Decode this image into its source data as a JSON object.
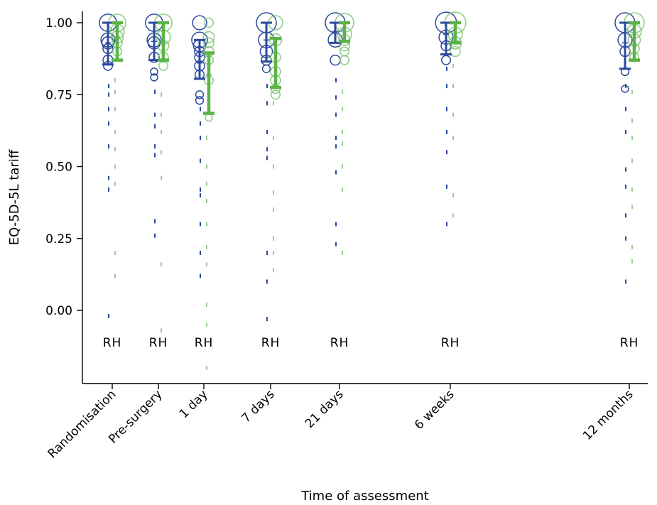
{
  "chart_data": {
    "type": "scatter",
    "xlabel": "Time of assessment",
    "ylabel": "EQ-5D-5L tariff",
    "ylim": [
      -0.25,
      1.05
    ],
    "yticks": [
      "0.00",
      "0.25",
      "0.50",
      "0.75",
      "1.00"
    ],
    "categories": [
      "Randomisation",
      "Pre-surgery",
      "1 day",
      "7 days",
      "21 days",
      "6 weeks",
      "12 months"
    ],
    "group_label": "RH",
    "grid": false,
    "colors": {
      "R": "#2b4a9e",
      "H": "#78c06e",
      "H_mean": "#5cb348"
    },
    "series": [
      {
        "name": "R",
        "bubbles": [
          [
            [
              1.0,
              3
            ],
            [
              0.94,
              2
            ],
            [
              0.93,
              1.5
            ],
            [
              0.91,
              1
            ],
            [
              0.87,
              1
            ],
            [
              0.85,
              0.8
            ]
          ],
          [
            [
              1.0,
              3
            ],
            [
              0.94,
              2
            ],
            [
              0.93,
              1.5
            ],
            [
              0.88,
              1
            ],
            [
              0.83,
              0.5
            ],
            [
              0.81,
              0.5
            ]
          ],
          [
            [
              1.0,
              2
            ],
            [
              0.94,
              2.5
            ],
            [
              0.92,
              1.5
            ],
            [
              0.9,
              1
            ],
            [
              0.88,
              1
            ],
            [
              0.85,
              1
            ],
            [
              0.82,
              0.8
            ],
            [
              0.75,
              0.6
            ],
            [
              0.73,
              0.6
            ]
          ],
          [
            [
              1.0,
              4
            ],
            [
              0.94,
              2.5
            ],
            [
              0.9,
              1.5
            ],
            [
              0.87,
              1
            ],
            [
              0.84,
              0.6
            ]
          ],
          [
            [
              1.0,
              4
            ],
            [
              0.94,
              2
            ],
            [
              0.87,
              1
            ]
          ],
          [
            [
              1.0,
              4.5
            ],
            [
              0.95,
              2
            ],
            [
              0.92,
              1
            ],
            [
              0.87,
              0.8
            ]
          ],
          [
            [
              1.0,
              4
            ],
            [
              0.94,
              2
            ],
            [
              0.9,
              1
            ],
            [
              0.83,
              0.6
            ],
            [
              0.77,
              0.5
            ]
          ]
        ],
        "dashes": [
          [
            0.78,
            0.75,
            0.7,
            0.65,
            0.57,
            0.46,
            0.42,
            -0.02
          ],
          [
            0.76,
            0.68,
            0.64,
            0.57,
            0.54,
            0.31,
            0.26
          ],
          [
            0.7,
            0.65,
            0.6,
            0.52,
            0.42,
            0.4,
            0.3,
            0.2,
            0.12
          ],
          [
            0.78,
            0.72,
            0.62,
            0.56,
            0.53,
            0.2,
            0.1,
            -0.03
          ],
          [
            0.8,
            0.74,
            0.68,
            0.6,
            0.57,
            0.48,
            0.3,
            0.23
          ],
          [
            0.84,
            0.78,
            0.7,
            0.62,
            0.55,
            0.43,
            0.3
          ],
          [
            0.78,
            0.7,
            0.62,
            0.49,
            0.43,
            0.33,
            0.25,
            0.1
          ]
        ]
      },
      {
        "name": "H",
        "bubbles": [
          [
            [
              1.0,
              3
            ],
            [
              0.97,
              2
            ],
            [
              0.95,
              1.5
            ],
            [
              0.93,
              1
            ],
            [
              0.9,
              0.8
            ]
          ],
          [
            [
              1.0,
              3
            ],
            [
              0.95,
              2
            ],
            [
              0.92,
              1.2
            ],
            [
              0.88,
              1
            ],
            [
              0.85,
              0.8
            ]
          ],
          [
            [
              1.0,
              0.8
            ],
            [
              0.95,
              1.2
            ],
            [
              0.93,
              1
            ],
            [
              0.9,
              1
            ],
            [
              0.87,
              0.8
            ],
            [
              0.8,
              0.8
            ],
            [
              0.67,
              0.5
            ]
          ],
          [
            [
              1.0,
              2
            ],
            [
              0.94,
              1.5
            ],
            [
              0.88,
              1
            ],
            [
              0.83,
              1
            ],
            [
              0.8,
              1
            ],
            [
              0.77,
              0.8
            ],
            [
              0.75,
              0.8
            ]
          ],
          [
            [
              1.0,
              3.5
            ],
            [
              0.96,
              2
            ],
            [
              0.94,
              1.2
            ],
            [
              0.92,
              1
            ],
            [
              0.9,
              0.8
            ],
            [
              0.87,
              0.8
            ]
          ],
          [
            [
              1.0,
              4.5
            ],
            [
              0.96,
              2
            ],
            [
              0.93,
              1.5
            ],
            [
              0.9,
              1
            ]
          ],
          [
            [
              1.0,
              4
            ],
            [
              0.97,
              2
            ],
            [
              0.94,
              1.5
            ],
            [
              0.91,
              1
            ],
            [
              0.88,
              0.8
            ]
          ]
        ],
        "dashes": [
          [
            0.8,
            0.76,
            0.7,
            0.62,
            0.56,
            0.5,
            0.44,
            0.2,
            0.12
          ],
          [
            0.75,
            0.68,
            0.62,
            0.55,
            0.46,
            0.16,
            -0.07
          ],
          [
            0.6,
            0.5,
            0.44,
            0.38,
            0.3,
            0.22,
            0.16,
            0.02,
            -0.05,
            -0.2
          ],
          [
            0.72,
            0.6,
            0.5,
            0.41,
            0.35,
            0.25,
            0.2,
            0.14
          ],
          [
            0.76,
            0.7,
            0.62,
            0.58,
            0.5,
            0.42,
            0.2
          ],
          [
            0.85,
            0.78,
            0.68,
            0.6,
            0.4,
            0.33
          ],
          [
            0.76,
            0.66,
            0.6,
            0.52,
            0.42,
            0.36,
            0.22,
            0.17
          ]
        ]
      }
    ],
    "means": {
      "R": [
        0.93,
        0.935,
        0.86,
        0.94,
        0.97,
        0.96,
        0.93
      ],
      "H": [
        0.95,
        0.93,
        0.82,
        0.895,
        0.935,
        0.935,
        0.92
      ]
    },
    "ci": {
      "R": [
        [
          0.855,
          1.0
        ],
        [
          0.87,
          1.0
        ],
        [
          0.805,
          0.94
        ],
        [
          0.865,
          1.0
        ],
        [
          0.93,
          1.0
        ],
        [
          0.89,
          1.0
        ],
        [
          0.84,
          1.0
        ]
      ],
      "H": [
        [
          0.87,
          1.0
        ],
        [
          0.87,
          1.0
        ],
        [
          0.685,
          0.895
        ],
        [
          0.775,
          0.945
        ],
        [
          0.935,
          1.0
        ],
        [
          0.93,
          1.0
        ],
        [
          0.87,
          1.0
        ]
      ]
    }
  }
}
